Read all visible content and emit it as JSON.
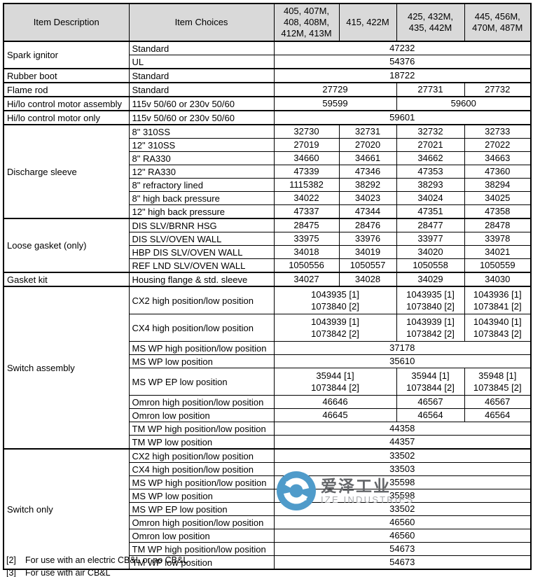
{
  "header": {
    "col_item_description": "Item Description",
    "col_item_choices": "Item Choices",
    "model_columns": [
      "405, 407M,\n408, 408M,\n412M, 413M",
      "415, 422M",
      "425, 432M,\n435, 442M",
      "445, 456M,\n470M, 487M"
    ]
  },
  "groups": [
    {
      "description": "Spark ignitor",
      "rows": [
        {
          "choice": "Standard",
          "cells": [
            {
              "text": "47232",
              "span": 4
            }
          ]
        },
        {
          "choice": "UL",
          "cells": [
            {
              "text": "54376",
              "span": 4
            }
          ]
        }
      ]
    },
    {
      "description": "Rubber boot",
      "rows": [
        {
          "choice": "Standard",
          "cells": [
            {
              "text": "18722",
              "span": 4
            }
          ]
        }
      ]
    },
    {
      "description": "Flame rod",
      "rows": [
        {
          "choice": "Standard",
          "cells": [
            {
              "text": "27729",
              "span": 2
            },
            {
              "text": "27731",
              "span": 1
            },
            {
              "text": "27732",
              "span": 1
            }
          ]
        }
      ]
    },
    {
      "description": "Hi/lo control motor assembly",
      "rows": [
        {
          "choice": "115v 50/60 or 230v 50/60",
          "cells": [
            {
              "text": "59599",
              "span": 2
            },
            {
              "text": "59600",
              "span": 2
            }
          ]
        }
      ]
    },
    {
      "description": "Hi/lo control motor only",
      "rows": [
        {
          "choice": "115v 50/60 or 230v 50/60",
          "cells": [
            {
              "text": "59601",
              "span": 4
            }
          ]
        }
      ]
    },
    {
      "description": "Discharge sleeve",
      "rows": [
        {
          "choice": "8\" 310SS",
          "cells": [
            {
              "text": "32730",
              "span": 1
            },
            {
              "text": "32731",
              "span": 1
            },
            {
              "text": "32732",
              "span": 1
            },
            {
              "text": "32733",
              "span": 1
            }
          ]
        },
        {
          "choice": "12\" 310SS",
          "cells": [
            {
              "text": "27019",
              "span": 1
            },
            {
              "text": "27020",
              "span": 1
            },
            {
              "text": "27021",
              "span": 1
            },
            {
              "text": "27022",
              "span": 1
            }
          ]
        },
        {
          "choice": "8\" RA330",
          "cells": [
            {
              "text": "34660",
              "span": 1
            },
            {
              "text": "34661",
              "span": 1
            },
            {
              "text": "34662",
              "span": 1
            },
            {
              "text": "34663",
              "span": 1
            }
          ]
        },
        {
          "choice": "12\" RA330",
          "cells": [
            {
              "text": "47339",
              "span": 1
            },
            {
              "text": "47346",
              "span": 1
            },
            {
              "text": "47353",
              "span": 1
            },
            {
              "text": "47360",
              "span": 1
            }
          ]
        },
        {
          "choice": "8\" refractory lined",
          "cells": [
            {
              "text": "1115382",
              "span": 1
            },
            {
              "text": "38292",
              "span": 1
            },
            {
              "text": "38293",
              "span": 1
            },
            {
              "text": "38294",
              "span": 1
            }
          ]
        },
        {
          "choice": "8\" high back pressure",
          "cells": [
            {
              "text": "34022",
              "span": 1
            },
            {
              "text": "34023",
              "span": 1
            },
            {
              "text": "34024",
              "span": 1
            },
            {
              "text": "34025",
              "span": 1
            }
          ]
        },
        {
          "choice": "12\" high back pressure",
          "cells": [
            {
              "text": "47337",
              "span": 1
            },
            {
              "text": "47344",
              "span": 1
            },
            {
              "text": "47351",
              "span": 1
            },
            {
              "text": "47358",
              "span": 1
            }
          ]
        }
      ]
    },
    {
      "description": "Loose gasket (only)",
      "rows": [
        {
          "choice": "DIS SLV/BRNR HSG",
          "cells": [
            {
              "text": "28475",
              "span": 1
            },
            {
              "text": "28476",
              "span": 1
            },
            {
              "text": "28477",
              "span": 1
            },
            {
              "text": "28478",
              "span": 1
            }
          ]
        },
        {
          "choice": "DIS SLV/OVEN WALL",
          "cells": [
            {
              "text": "33975",
              "span": 1
            },
            {
              "text": "33976",
              "span": 1
            },
            {
              "text": "33977",
              "span": 1
            },
            {
              "text": "33978",
              "span": 1
            }
          ]
        },
        {
          "choice": "HBP DIS SLV/OVEN WALL",
          "cells": [
            {
              "text": "34018",
              "span": 1
            },
            {
              "text": "34019",
              "span": 1
            },
            {
              "text": "34020",
              "span": 1
            },
            {
              "text": "34021",
              "span": 1
            }
          ]
        },
        {
          "choice": "REF LND SLV/OVEN WALL",
          "cells": [
            {
              "text": "1050556",
              "span": 1
            },
            {
              "text": "1050557",
              "span": 1
            },
            {
              "text": "1050558",
              "span": 1
            },
            {
              "text": "1050559",
              "span": 1
            }
          ]
        }
      ]
    },
    {
      "description": "Gasket kit",
      "rows": [
        {
          "choice": "Housing flange & std. sleeve",
          "cells": [
            {
              "text": "34027",
              "span": 1
            },
            {
              "text": "34028",
              "span": 1
            },
            {
              "text": "34029",
              "span": 1
            },
            {
              "text": "34030",
              "span": 1
            }
          ]
        }
      ]
    },
    {
      "description": "Switch assembly",
      "rows": [
        {
          "choice": "CX2 high position/low position",
          "cells": [
            {
              "text": "1043935 [1]\n1073840 [2]",
              "span": 2
            },
            {
              "text": "1043935 [1]\n1073840 [2]",
              "span": 1
            },
            {
              "text": "1043936 [1]\n1073841 [2]",
              "span": 1
            }
          ]
        },
        {
          "choice": "CX4 high position/low position",
          "cells": [
            {
              "text": "1043939 [1]\n1073842 [2]",
              "span": 2
            },
            {
              "text": "1043939 [1]\n1073842 [2]",
              "span": 1
            },
            {
              "text": "1043940 [1]\n1073843 [2]",
              "span": 1
            }
          ]
        },
        {
          "choice": "MS WP high position/low position",
          "cells": [
            {
              "text": "37178",
              "span": 4
            }
          ]
        },
        {
          "choice": "MS WP low position",
          "cells": [
            {
              "text": "35610",
              "span": 4
            }
          ]
        },
        {
          "choice": "MS WP EP low position",
          "cells": [
            {
              "text": "35944 [1]\n1073844 [2]",
              "span": 2
            },
            {
              "text": "35944 [1]\n1073844 [2]",
              "span": 1
            },
            {
              "text": "35948 [1]\n1073845 [2]",
              "span": 1
            }
          ]
        },
        {
          "choice": "Omron high position/low position",
          "cells": [
            {
              "text": "46646",
              "span": 2
            },
            {
              "text": "46567",
              "span": 1
            },
            {
              "text": "46567",
              "span": 1
            }
          ]
        },
        {
          "choice": "Omron low position",
          "cells": [
            {
              "text": "46645",
              "span": 2
            },
            {
              "text": "46564",
              "span": 1
            },
            {
              "text": "46564",
              "span": 1
            }
          ]
        },
        {
          "choice": "TM WP high position/low position",
          "cells": [
            {
              "text": "44358",
              "span": 4
            }
          ]
        },
        {
          "choice": "TM WP low position",
          "cells": [
            {
              "text": "44357",
              "span": 4
            }
          ]
        }
      ]
    },
    {
      "description": "Switch only",
      "rows": [
        {
          "choice": "CX2 high position/low position",
          "cells": [
            {
              "text": "33502",
              "span": 4
            }
          ]
        },
        {
          "choice": "CX4 high position/low position",
          "cells": [
            {
              "text": "33503",
              "span": 4
            }
          ]
        },
        {
          "choice": "MS WP high position/low position",
          "cells": [
            {
              "text": "35598",
              "span": 4
            }
          ]
        },
        {
          "choice": "MS WP low position",
          "cells": [
            {
              "text": "35598",
              "span": 4
            }
          ]
        },
        {
          "choice": "MS WP EP low position",
          "cells": [
            {
              "text": "33502",
              "span": 4
            }
          ]
        },
        {
          "choice": "Omron high position/low position",
          "cells": [
            {
              "text": "46560",
              "span": 4
            }
          ]
        },
        {
          "choice": "Omron low position",
          "cells": [
            {
              "text": "46560",
              "span": 4
            }
          ]
        },
        {
          "choice": "TM WP high position/low position",
          "cells": [
            {
              "text": "54673",
              "span": 4
            }
          ]
        },
        {
          "choice": "TM WP low position",
          "cells": [
            {
              "text": "54673",
              "span": 4
            }
          ]
        }
      ]
    }
  ],
  "footnotes": [
    {
      "marker": "[2]",
      "text": "For use with an electric CB&L or no CB&L"
    },
    {
      "marker": "[3]",
      "text": "For use with air CB&L"
    }
  ],
  "watermark": {
    "chinese": "爱泽工业",
    "latin": "IZE INDUSTRIES",
    "logo_icon": "ize-swirl-icon",
    "colors": {
      "circle": "#4f9bca",
      "glyph": "#ffffff",
      "chinese_text": "#646669",
      "latin_text": "#a9abae"
    }
  },
  "colors": {
    "header_bg": "#d9d9d9",
    "border": "#000000",
    "text": "#000000"
  }
}
